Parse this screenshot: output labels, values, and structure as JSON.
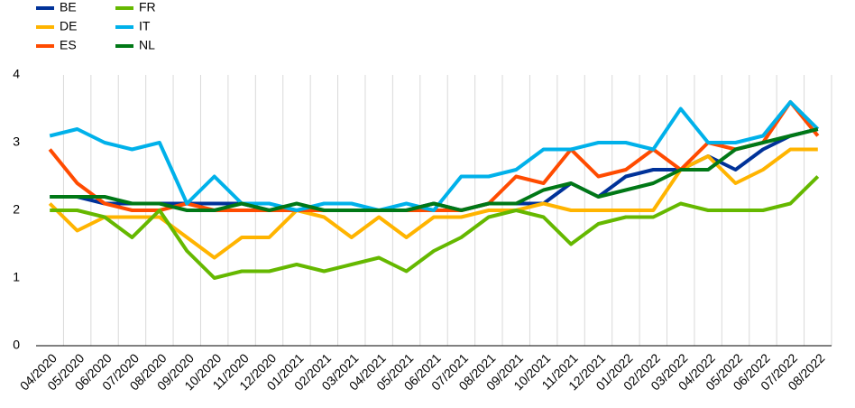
{
  "chart_data": {
    "type": "line",
    "categories": [
      "04/2020",
      "05/2020",
      "06/2020",
      "07/2020",
      "08/2020",
      "09/2020",
      "10/2020",
      "11/2020",
      "12/2020",
      "01/2021",
      "02/2021",
      "03/2021",
      "04/2021",
      "05/2021",
      "06/2021",
      "07/2021",
      "08/2021",
      "09/2021",
      "10/2021",
      "11/2021",
      "12/2021",
      "01/2022",
      "02/2022",
      "03/2022",
      "04/2022",
      "05/2022",
      "06/2022",
      "07/2022",
      "08/2022"
    ],
    "series": [
      {
        "name": "BE",
        "color": "#003299",
        "values": [
          2.2,
          2.2,
          2.1,
          2.1,
          2.1,
          2.1,
          2.1,
          2.1,
          2.0,
          2.0,
          2.0,
          2.0,
          2.0,
          2.0,
          2.1,
          2.0,
          2.1,
          2.1,
          2.1,
          2.4,
          2.2,
          2.5,
          2.6,
          2.6,
          2.8,
          2.6,
          2.9,
          3.1,
          3.2
        ]
      },
      {
        "name": "DE",
        "color": "#ffb400",
        "values": [
          2.1,
          1.7,
          1.9,
          1.9,
          1.9,
          1.6,
          1.3,
          1.6,
          1.6,
          2.0,
          1.9,
          1.6,
          1.9,
          1.6,
          1.9,
          1.9,
          2.0,
          2.0,
          2.1,
          2.0,
          2.0,
          2.0,
          2.0,
          2.6,
          2.8,
          2.4,
          2.6,
          2.9,
          2.9
        ]
      },
      {
        "name": "ES",
        "color": "#ff4b00",
        "values": [
          2.9,
          2.4,
          2.1,
          2.0,
          2.0,
          2.1,
          2.0,
          2.0,
          2.0,
          2.0,
          2.0,
          2.0,
          2.0,
          2.0,
          2.0,
          2.0,
          2.1,
          2.5,
          2.4,
          2.9,
          2.5,
          2.6,
          2.9,
          2.6,
          3.0,
          2.9,
          3.0,
          3.6,
          3.1
        ]
      },
      {
        "name": "FR",
        "color": "#65b800",
        "values": [
          2.0,
          2.0,
          1.9,
          1.6,
          2.0,
          1.4,
          1.0,
          1.1,
          1.1,
          1.2,
          1.1,
          1.2,
          1.3,
          1.1,
          1.4,
          1.6,
          1.9,
          2.0,
          1.9,
          1.5,
          1.8,
          1.9,
          1.9,
          2.1,
          2.0,
          2.0,
          2.0,
          2.1,
          2.5
        ]
      },
      {
        "name": "IT",
        "color": "#00b1ea",
        "values": [
          3.1,
          3.2,
          3.0,
          2.9,
          3.0,
          2.1,
          2.5,
          2.1,
          2.1,
          2.0,
          2.1,
          2.1,
          2.0,
          2.1,
          2.0,
          2.5,
          2.5,
          2.6,
          2.9,
          2.9,
          3.0,
          3.0,
          2.9,
          3.5,
          3.0,
          3.0,
          3.1,
          3.6,
          3.2
        ]
      },
      {
        "name": "NL",
        "color": "#007816",
        "values": [
          2.2,
          2.2,
          2.2,
          2.1,
          2.1,
          2.0,
          2.0,
          2.1,
          2.0,
          2.1,
          2.0,
          2.0,
          2.0,
          2.0,
          2.1,
          2.0,
          2.1,
          2.1,
          2.3,
          2.4,
          2.2,
          2.3,
          2.4,
          2.6,
          2.6,
          2.9,
          3.0,
          3.1,
          3.2
        ]
      }
    ],
    "ylim": [
      0,
      4
    ],
    "yticks": [
      0,
      1,
      2,
      3,
      4
    ],
    "grid": true,
    "legend": "upper-left"
  }
}
